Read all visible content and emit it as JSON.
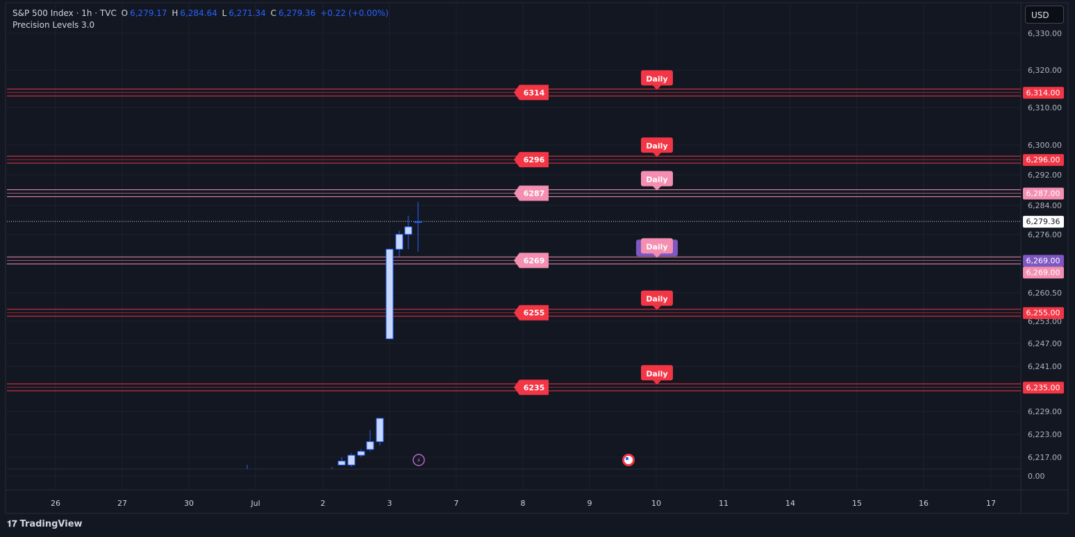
{
  "header": {
    "symbol": "S&P 500 Index · 1h · TVC",
    "open_label": "O",
    "open": "6,279.17",
    "high_label": "H",
    "high": "6,284.64",
    "low_label": "L",
    "low": "6,271.34",
    "close_label": "C",
    "close": "6,279.36",
    "change": "+0.22 (+0.00%)",
    "indicator": "Precision Levels 3.0"
  },
  "currency_button": "USD",
  "brand": "TradingView",
  "colors": {
    "background": "#131722",
    "red_level": "#f23645",
    "pink_level": "#f48fb1",
    "purple_level": "#7e57c2",
    "candle_body": "#c6d8ff",
    "candle_border": "#2962ff"
  },
  "chart_data": {
    "type": "candlestick",
    "price_axis_ticks": [
      "6,330.00",
      "6,320.00",
      "6,310.00",
      "6,300.00",
      "6,292.00",
      "6,284.00",
      "6,276.00",
      "6,260.50",
      "6,253.00",
      "6,247.00",
      "6,241.00",
      "6,229.00",
      "6,223.00",
      "6,217.00",
      "0.00"
    ],
    "time_axis_ticks": [
      "26",
      "27",
      "30",
      "Jul",
      "2",
      "3",
      "7",
      "8",
      "9",
      "10",
      "11",
      "14",
      "15",
      "16",
      "17"
    ],
    "current_price": "6,279.36",
    "levels": [
      {
        "value": 6314,
        "tag": "6314",
        "axis": "6,314.00",
        "color": "red",
        "label": "Daily"
      },
      {
        "value": 6296,
        "tag": "6296",
        "axis": "6,296.00",
        "color": "red",
        "label": "Daily"
      },
      {
        "value": 6287,
        "tag": "6287",
        "axis": "6,287.00",
        "color": "pink",
        "label": "Daily"
      },
      {
        "value": 6269,
        "tag": "6269",
        "axis": "6,269.00",
        "color": "pink",
        "label": "Daily"
      },
      {
        "value": 6255,
        "tag": "6255",
        "axis": "6,255.00",
        "color": "red",
        "label": "Daily"
      },
      {
        "value": 6235,
        "tag": "6235",
        "axis": "6,235.00",
        "color": "red",
        "label": "Daily"
      }
    ],
    "candles_upper": [
      {
        "open": 6248,
        "close": 6272,
        "high": 6272,
        "low": 6248
      },
      {
        "open": 6272,
        "close": 6276,
        "high": 6277,
        "low": 6270
      },
      {
        "open": 6276,
        "close": 6278,
        "high": 6281,
        "low": 6272
      },
      {
        "open": 6279.17,
        "close": 6279.36,
        "high": 6284.64,
        "low": 6271.34
      }
    ],
    "candles_lower": [
      {
        "open": 6215,
        "close": 6215.3,
        "high": 6215.5,
        "low": 6215
      },
      {
        "open": 6215,
        "close": 6216,
        "high": 6217,
        "low": 6215
      },
      {
        "open": 6215,
        "close": 6217.5,
        "high": 6218,
        "low": 6214.5
      },
      {
        "open": 6217.5,
        "close": 6218.5,
        "high": 6219,
        "low": 6217
      },
      {
        "open": 6219,
        "close": 6221,
        "high": 6224,
        "low": 6218.5
      },
      {
        "open": 6221,
        "close": 6227,
        "high": 6227,
        "low": 6220
      }
    ]
  }
}
